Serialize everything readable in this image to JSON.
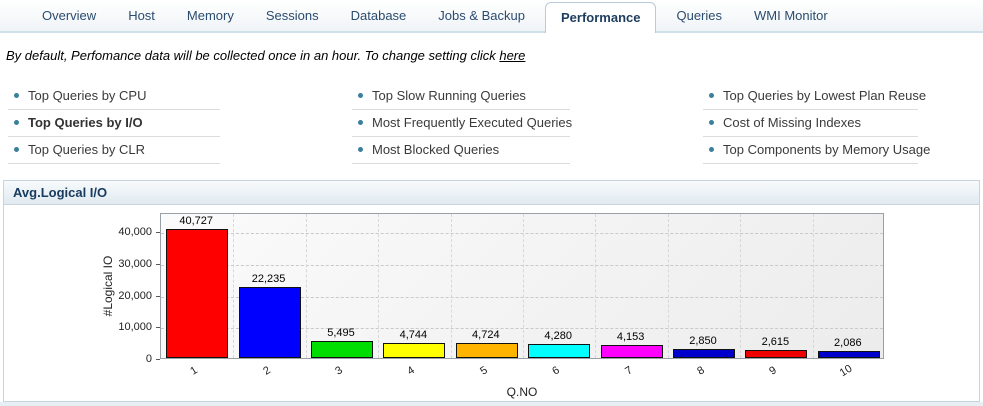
{
  "tabs": {
    "items": [
      {
        "label": "Overview",
        "active": false
      },
      {
        "label": "Host",
        "active": false
      },
      {
        "label": "Memory",
        "active": false
      },
      {
        "label": "Sessions",
        "active": false
      },
      {
        "label": "Database",
        "active": false
      },
      {
        "label": "Jobs & Backup",
        "active": false
      },
      {
        "label": "Performance",
        "active": true
      },
      {
        "label": "Queries",
        "active": false
      },
      {
        "label": "WMI Monitor",
        "active": false
      }
    ]
  },
  "note": {
    "text": "By default, Perfomance data will be collected once in an hour. To change setting click",
    "link_label": "here"
  },
  "quick_links": {
    "columns": [
      {
        "items": [
          {
            "label": "Top Queries by CPU",
            "selected": false
          },
          {
            "label": "Top Queries by I/O",
            "selected": true
          },
          {
            "label": "Top Queries by CLR",
            "selected": false
          }
        ]
      },
      {
        "items": [
          {
            "label": "Top Slow Running Queries",
            "selected": false
          },
          {
            "label": "Most Frequently Executed Queries",
            "selected": false
          },
          {
            "label": "Most Blocked Queries",
            "selected": false
          }
        ]
      },
      {
        "items": [
          {
            "label": "Top Queries by Lowest Plan Reuse",
            "selected": false
          },
          {
            "label": "Cost of Missing Indexes",
            "selected": false
          },
          {
            "label": "Top Components by Memory Usage",
            "selected": false
          }
        ]
      }
    ]
  },
  "panel": {
    "title": "Avg.Logical I/O"
  },
  "chart_data": {
    "type": "bar",
    "title": "Avg.Logical I/O",
    "categories": [
      "1",
      "2",
      "3",
      "4",
      "5",
      "6",
      "7",
      "8",
      "9",
      "10"
    ],
    "values": [
      40727,
      22235,
      5495,
      4744,
      4724,
      4280,
      4153,
      2850,
      2615,
      2086
    ],
    "value_labels": [
      "40,727",
      "22,235",
      "5,495",
      "4,744",
      "4,724",
      "4,280",
      "4,153",
      "2,850",
      "2,615",
      "2,086"
    ],
    "bar_colors": [
      "#ff0000",
      "#0000ff",
      "#00dd00",
      "#ffff00",
      "#ffb400",
      "#00ffff",
      "#ff00ff",
      "#0000cd",
      "#ee0000",
      "#0000cd"
    ],
    "xlabel": "Q.NO",
    "ylabel": "#Logical IO",
    "ylim": [
      0,
      46000
    ],
    "yticks": [
      0,
      10000,
      20000,
      30000,
      40000
    ],
    "ytick_labels": [
      "0",
      "10,000",
      "20,000",
      "30,000",
      "40,000"
    ],
    "grid": "dashed",
    "legend": "none"
  },
  "colors": {
    "active_tab_text": "#1d3c5e",
    "bullet": "#3b7f9c",
    "panel_title": "#173a5e",
    "tabbar_border": "#cfe0eb"
  }
}
